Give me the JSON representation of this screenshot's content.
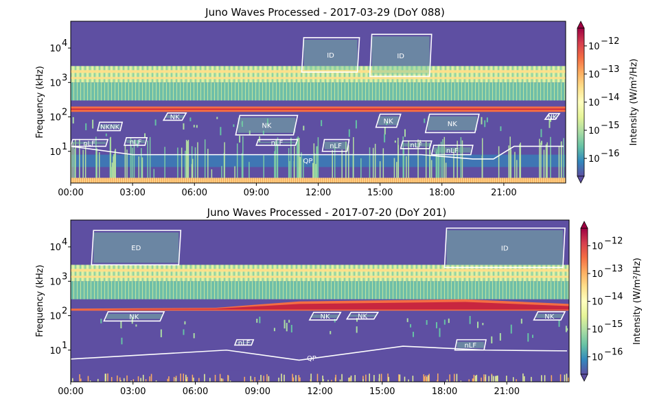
{
  "chart_data": [
    {
      "type": "heatmap",
      "title": "Juno Waves Processed -  2017-03-29 (DoY 088)",
      "ylabel": "Frequency (kHz)",
      "x_ticks": [
        "00:00",
        "03:00",
        "06:00",
        "09:00",
        "12:00",
        "15:00",
        "18:00",
        "21:00"
      ],
      "y_ticks": [
        "10",
        "10",
        "10",
        "10"
      ],
      "y_tick_exponents": [
        "1",
        "2",
        "3",
        "4"
      ],
      "ylim_khz": [
        1.2,
        60000
      ],
      "yscale": "log",
      "colorbar": {
        "label": "Intensity (W/m²/Hz)",
        "ticks": [
          "10",
          "10",
          "10",
          "10",
          "10"
        ],
        "tick_exponents": [
          "−16",
          "−15",
          "−14",
          "−13",
          "−12"
        ],
        "colormap": "Spectral_r"
      },
      "bands": [
        {
          "name": "upper band",
          "f_low_khz": 1000,
          "f_high_khz": 3000
        },
        {
          "name": "bright band",
          "f_low_khz": 140,
          "f_high_khz": 200
        }
      ],
      "regions": [
        {
          "label": "ID",
          "t_start_h": 14.5,
          "t_end_h": 17.5,
          "f_low_khz": 1500,
          "f_high_khz": 25000
        },
        {
          "label": "ID",
          "t_start_h": 11.2,
          "t_end_h": 14.0,
          "f_low_khz": 2000,
          "f_high_khz": 20000
        },
        {
          "label": "NK",
          "t_start_h": 4.5,
          "t_end_h": 5.6,
          "f_low_khz": 80,
          "f_high_khz": 130
        },
        {
          "label": "NK",
          "t_start_h": 8.0,
          "t_end_h": 11.0,
          "f_low_khz": 30,
          "f_high_khz": 110
        },
        {
          "label": "NK",
          "t_start_h": 14.8,
          "t_end_h": 16.0,
          "f_low_khz": 50,
          "f_high_khz": 120
        },
        {
          "label": "NK",
          "t_start_h": 17.2,
          "t_end_h": 19.8,
          "f_low_khz": 35,
          "f_high_khz": 120
        },
        {
          "label": "NK",
          "t_start_h": 23.0,
          "t_end_h": 23.7,
          "f_low_khz": 85,
          "f_high_khz": 125
        },
        {
          "label": "NKNK",
          "t_start_h": 1.3,
          "t_end_h": 2.5,
          "f_low_khz": 40,
          "f_high_khz": 70
        },
        {
          "label": "nLF",
          "t_start_h": 0.0,
          "t_end_h": 1.8,
          "f_low_khz": 14,
          "f_high_khz": 22
        },
        {
          "label": "nLF",
          "t_start_h": 2.6,
          "t_end_h": 3.7,
          "f_low_khz": 15,
          "f_high_khz": 25
        },
        {
          "label": "nLF",
          "t_start_h": 9.0,
          "t_end_h": 11.0,
          "f_low_khz": 15,
          "f_high_khz": 22
        },
        {
          "label": "nLF",
          "t_start_h": 12.2,
          "t_end_h": 13.5,
          "f_low_khz": 10,
          "f_high_khz": 22
        },
        {
          "label": "nLF",
          "t_start_h": 16.0,
          "t_end_h": 17.5,
          "f_low_khz": 12,
          "f_high_khz": 20
        },
        {
          "label": "nLF",
          "t_start_h": 17.5,
          "t_end_h": 19.5,
          "f_low_khz": 8,
          "f_high_khz": 15
        },
        {
          "label": "QP",
          "t_start_h": 0.0,
          "t_end_h": 23.9,
          "f_low_khz": 6,
          "f_high_khz": 14
        }
      ]
    },
    {
      "type": "heatmap",
      "title": "Juno Waves Processed -  2017-07-20 (DoY 201)",
      "ylabel": "Frequency (kHz)",
      "x_ticks": [
        "00:00",
        "03:00",
        "06:00",
        "09:00",
        "12:00",
        "15:00",
        "18:00",
        "21:00"
      ],
      "y_ticks": [
        "10",
        "10",
        "10",
        "10"
      ],
      "y_tick_exponents": [
        "1",
        "2",
        "3",
        "4"
      ],
      "ylim_khz": [
        1.2,
        60000
      ],
      "yscale": "log",
      "colorbar": {
        "label": "Intensity (W/m²/Hz)",
        "ticks": [
          "10",
          "10",
          "10",
          "10",
          "10"
        ],
        "tick_exponents": [
          "−16",
          "−15",
          "−14",
          "−13",
          "−12"
        ],
        "colormap": "Spectral_r"
      },
      "bands": [
        {
          "name": "upper band",
          "f_low_khz": 1000,
          "f_high_khz": 3000
        },
        {
          "name": "bright band",
          "f_low_khz": 140,
          "f_high_khz": 250
        }
      ],
      "regions": [
        {
          "label": "ED",
          "t_start_h": 1.0,
          "t_end_h": 5.3,
          "f_low_khz": 3000,
          "f_high_khz": 30000
        },
        {
          "label": "ID",
          "t_start_h": 18.0,
          "t_end_h": 23.8,
          "f_low_khz": 2500,
          "f_high_khz": 35000
        },
        {
          "label": "NK",
          "t_start_h": 1.6,
          "t_end_h": 4.5,
          "f_low_khz": 70,
          "f_high_khz": 130
        },
        {
          "label": "NK",
          "t_start_h": 11.5,
          "t_end_h": 13.0,
          "f_low_khz": 75,
          "f_high_khz": 125
        },
        {
          "label": "NK",
          "t_start_h": 13.3,
          "t_end_h": 14.8,
          "f_low_khz": 80,
          "f_high_khz": 125
        },
        {
          "label": "NK",
          "t_start_h": 22.3,
          "t_end_h": 23.8,
          "f_low_khz": 75,
          "f_high_khz": 130
        },
        {
          "label": "nLF",
          "t_start_h": 7.9,
          "t_end_h": 8.8,
          "f_low_khz": 14,
          "f_high_khz": 20
        },
        {
          "label": "nLF",
          "t_start_h": 18.5,
          "t_end_h": 20.0,
          "f_low_khz": 10,
          "f_high_khz": 20
        },
        {
          "label": "QP",
          "t_start_h": 0.0,
          "t_end_h": 23.9,
          "f_low_khz": 5,
          "f_high_khz": 13
        }
      ]
    }
  ]
}
